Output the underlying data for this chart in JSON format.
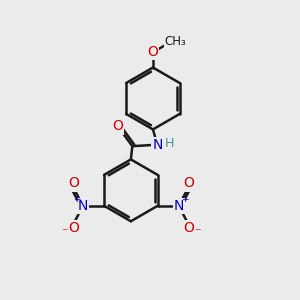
{
  "bg_color": "#ebebeb",
  "bond_color": "#1a1a1a",
  "bond_width": 1.8,
  "atom_colors": {
    "O": "#cc0000",
    "N": "#0000bb",
    "H": "#4a9090",
    "C": "#1a1a1a"
  },
  "font_size_atom": 10,
  "font_size_methyl": 8.5,
  "font_size_h": 9
}
